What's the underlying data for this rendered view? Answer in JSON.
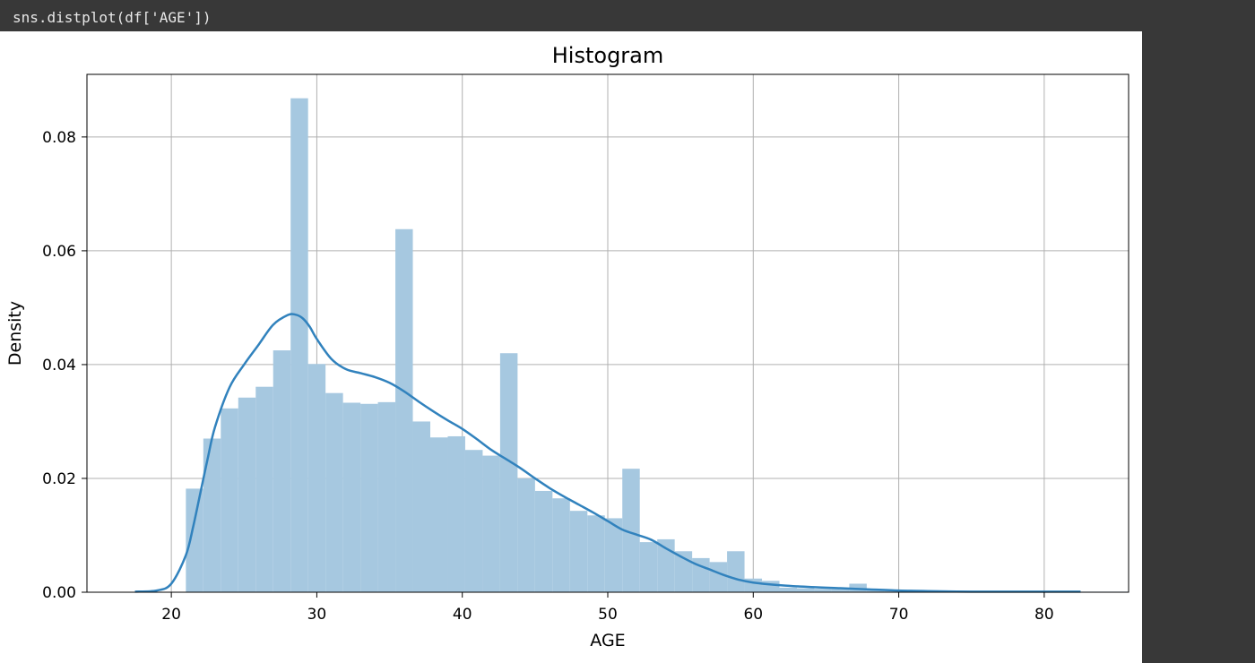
{
  "cell": {
    "code": "sns.distplot(df['AGE'])"
  },
  "colors": {
    "page_background": "#383838",
    "output_background": "#ffffff",
    "bar_fill": "#a6c8e0",
    "kde_line": "#3182bd",
    "grid": "#b0b0b0"
  },
  "chart_data": {
    "type": "bar",
    "title": "Histogram",
    "xlabel": "AGE",
    "ylabel": "Density",
    "xlim": [
      14.2,
      85.8
    ],
    "ylim": [
      0,
      0.091
    ],
    "grid": true,
    "xticks": [
      20,
      30,
      40,
      50,
      60,
      70,
      80
    ],
    "yticks": [
      0.0,
      0.02,
      0.04,
      0.06,
      0.08
    ],
    "ytick_labels": [
      "0.00",
      "0.02",
      "0.04",
      "0.06",
      "0.08"
    ],
    "histogram": {
      "bin_start": 21,
      "bin_width": 1.2,
      "values": [
        0.0182,
        0.027,
        0.0323,
        0.0342,
        0.0361,
        0.0425,
        0.0868,
        0.0401,
        0.035,
        0.0333,
        0.0331,
        0.0334,
        0.0638,
        0.03,
        0.0272,
        0.0274,
        0.025,
        0.024,
        0.042,
        0.02,
        0.0178,
        0.0165,
        0.0143,
        0.0135,
        0.013,
        0.0217,
        0.0088,
        0.0093,
        0.0072,
        0.006,
        0.0053,
        0.0072,
        0.0024,
        0.002,
        0.0008,
        0.0007,
        0.0006,
        0.0008,
        0.0015,
        0.0004,
        0.0003,
        0.0002,
        0.0002,
        0.0002,
        0.0001,
        0.0001,
        0.0001,
        0.0001,
        0.0001,
        0.0001,
        0.0001,
        0.0001,
        0.0001,
        0.0001
      ]
    },
    "kde": {
      "x": [
        17.5,
        19,
        20,
        21,
        21.5,
        22,
        22.5,
        23,
        24,
        25,
        26,
        27,
        28,
        28.5,
        29,
        29.5,
        30,
        31,
        32,
        33,
        34,
        35,
        36,
        37,
        38,
        39,
        40,
        41,
        42,
        43,
        44,
        45,
        46,
        47,
        48,
        49,
        50,
        51,
        52,
        53,
        54,
        55,
        56,
        57,
        58,
        59,
        60,
        62,
        64,
        66,
        68,
        70,
        72,
        75,
        78,
        82.5
      ],
      "y": [
        0.0001,
        0.0003,
        0.0015,
        0.0065,
        0.0115,
        0.0175,
        0.0235,
        0.029,
        0.036,
        0.04,
        0.0435,
        0.047,
        0.0487,
        0.0488,
        0.0482,
        0.0467,
        0.0445,
        0.041,
        0.0392,
        0.0385,
        0.0378,
        0.0368,
        0.0353,
        0.0335,
        0.0318,
        0.0302,
        0.0287,
        0.0269,
        0.025,
        0.0234,
        0.0218,
        0.02,
        0.0183,
        0.0168,
        0.0154,
        0.014,
        0.0125,
        0.011,
        0.0101,
        0.0092,
        0.0077,
        0.0063,
        0.005,
        0.004,
        0.003,
        0.0022,
        0.0017,
        0.0012,
        0.0009,
        0.0007,
        0.0005,
        0.0003,
        0.0002,
        0.0001,
        0.0001,
        0.0001
      ]
    }
  }
}
